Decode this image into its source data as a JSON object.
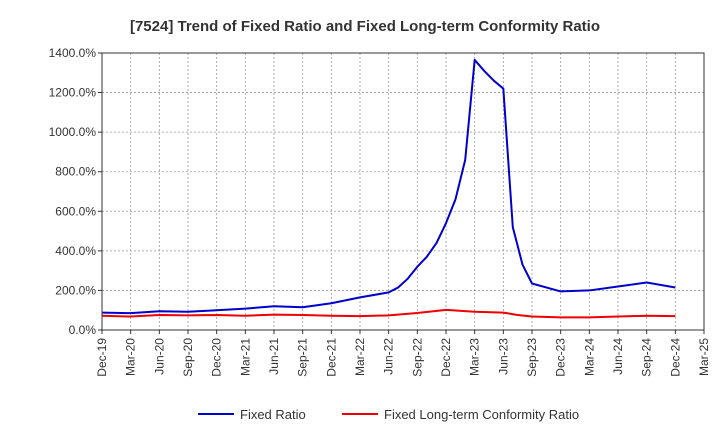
{
  "chart_data": {
    "type": "line",
    "title": "[7524]  Trend of Fixed Ratio and Fixed Long-term Conformity Ratio",
    "xlabel": "",
    "ylabel": "",
    "ylim": [
      0,
      1400
    ],
    "y_ticks": [
      "0.0%",
      "200.0%",
      "400.0%",
      "600.0%",
      "800.0%",
      "1000.0%",
      "1200.0%",
      "1400.0%"
    ],
    "x_ticks": [
      "Dec-19",
      "Mar-20",
      "Jun-20",
      "Sep-20",
      "Dec-20",
      "Mar-21",
      "Jun-21",
      "Sep-21",
      "Dec-21",
      "Mar-22",
      "Jun-22",
      "Sep-22",
      "Dec-22",
      "Mar-23",
      "Jun-23",
      "Sep-23",
      "Dec-23",
      "Mar-24",
      "Jun-24",
      "Sep-24",
      "Dec-24",
      "Mar-25"
    ],
    "grid": true,
    "legend_position": "bottom",
    "series": [
      {
        "name": "Fixed Ratio",
        "color": "#0000cc",
        "points": [
          [
            0,
            88
          ],
          [
            1,
            85
          ],
          [
            2,
            95
          ],
          [
            3,
            92
          ],
          [
            4,
            100
          ],
          [
            5,
            108
          ],
          [
            6,
            120
          ],
          [
            7,
            115
          ],
          [
            8,
            135
          ],
          [
            9,
            165
          ],
          [
            10,
            190
          ],
          [
            10.33,
            215
          ],
          [
            10.67,
            260
          ],
          [
            11,
            320
          ],
          [
            11.33,
            370
          ],
          [
            11.67,
            440
          ],
          [
            12,
            540
          ],
          [
            12.33,
            660
          ],
          [
            12.67,
            860
          ],
          [
            13,
            1365
          ],
          [
            13.33,
            1310
          ],
          [
            13.67,
            1260
          ],
          [
            14,
            1220
          ],
          [
            14.33,
            520
          ],
          [
            14.67,
            330
          ],
          [
            15,
            235
          ],
          [
            16,
            195
          ],
          [
            17,
            200
          ],
          [
            18,
            220
          ],
          [
            19,
            240
          ],
          [
            20,
            215
          ]
        ]
      },
      {
        "name": "Fixed Long-term Conformity Ratio",
        "color": "#ee0000",
        "points": [
          [
            0,
            72
          ],
          [
            1,
            68
          ],
          [
            2,
            76
          ],
          [
            3,
            74
          ],
          [
            4,
            76
          ],
          [
            5,
            72
          ],
          [
            6,
            78
          ],
          [
            7,
            76
          ],
          [
            8,
            72
          ],
          [
            9,
            70
          ],
          [
            10,
            74
          ],
          [
            11,
            86
          ],
          [
            12,
            102
          ],
          [
            13,
            92
          ],
          [
            14,
            88
          ],
          [
            14.5,
            76
          ],
          [
            15,
            68
          ],
          [
            16,
            64
          ],
          [
            17,
            64
          ],
          [
            18,
            68
          ],
          [
            19,
            72
          ],
          [
            20,
            70
          ]
        ]
      }
    ]
  }
}
